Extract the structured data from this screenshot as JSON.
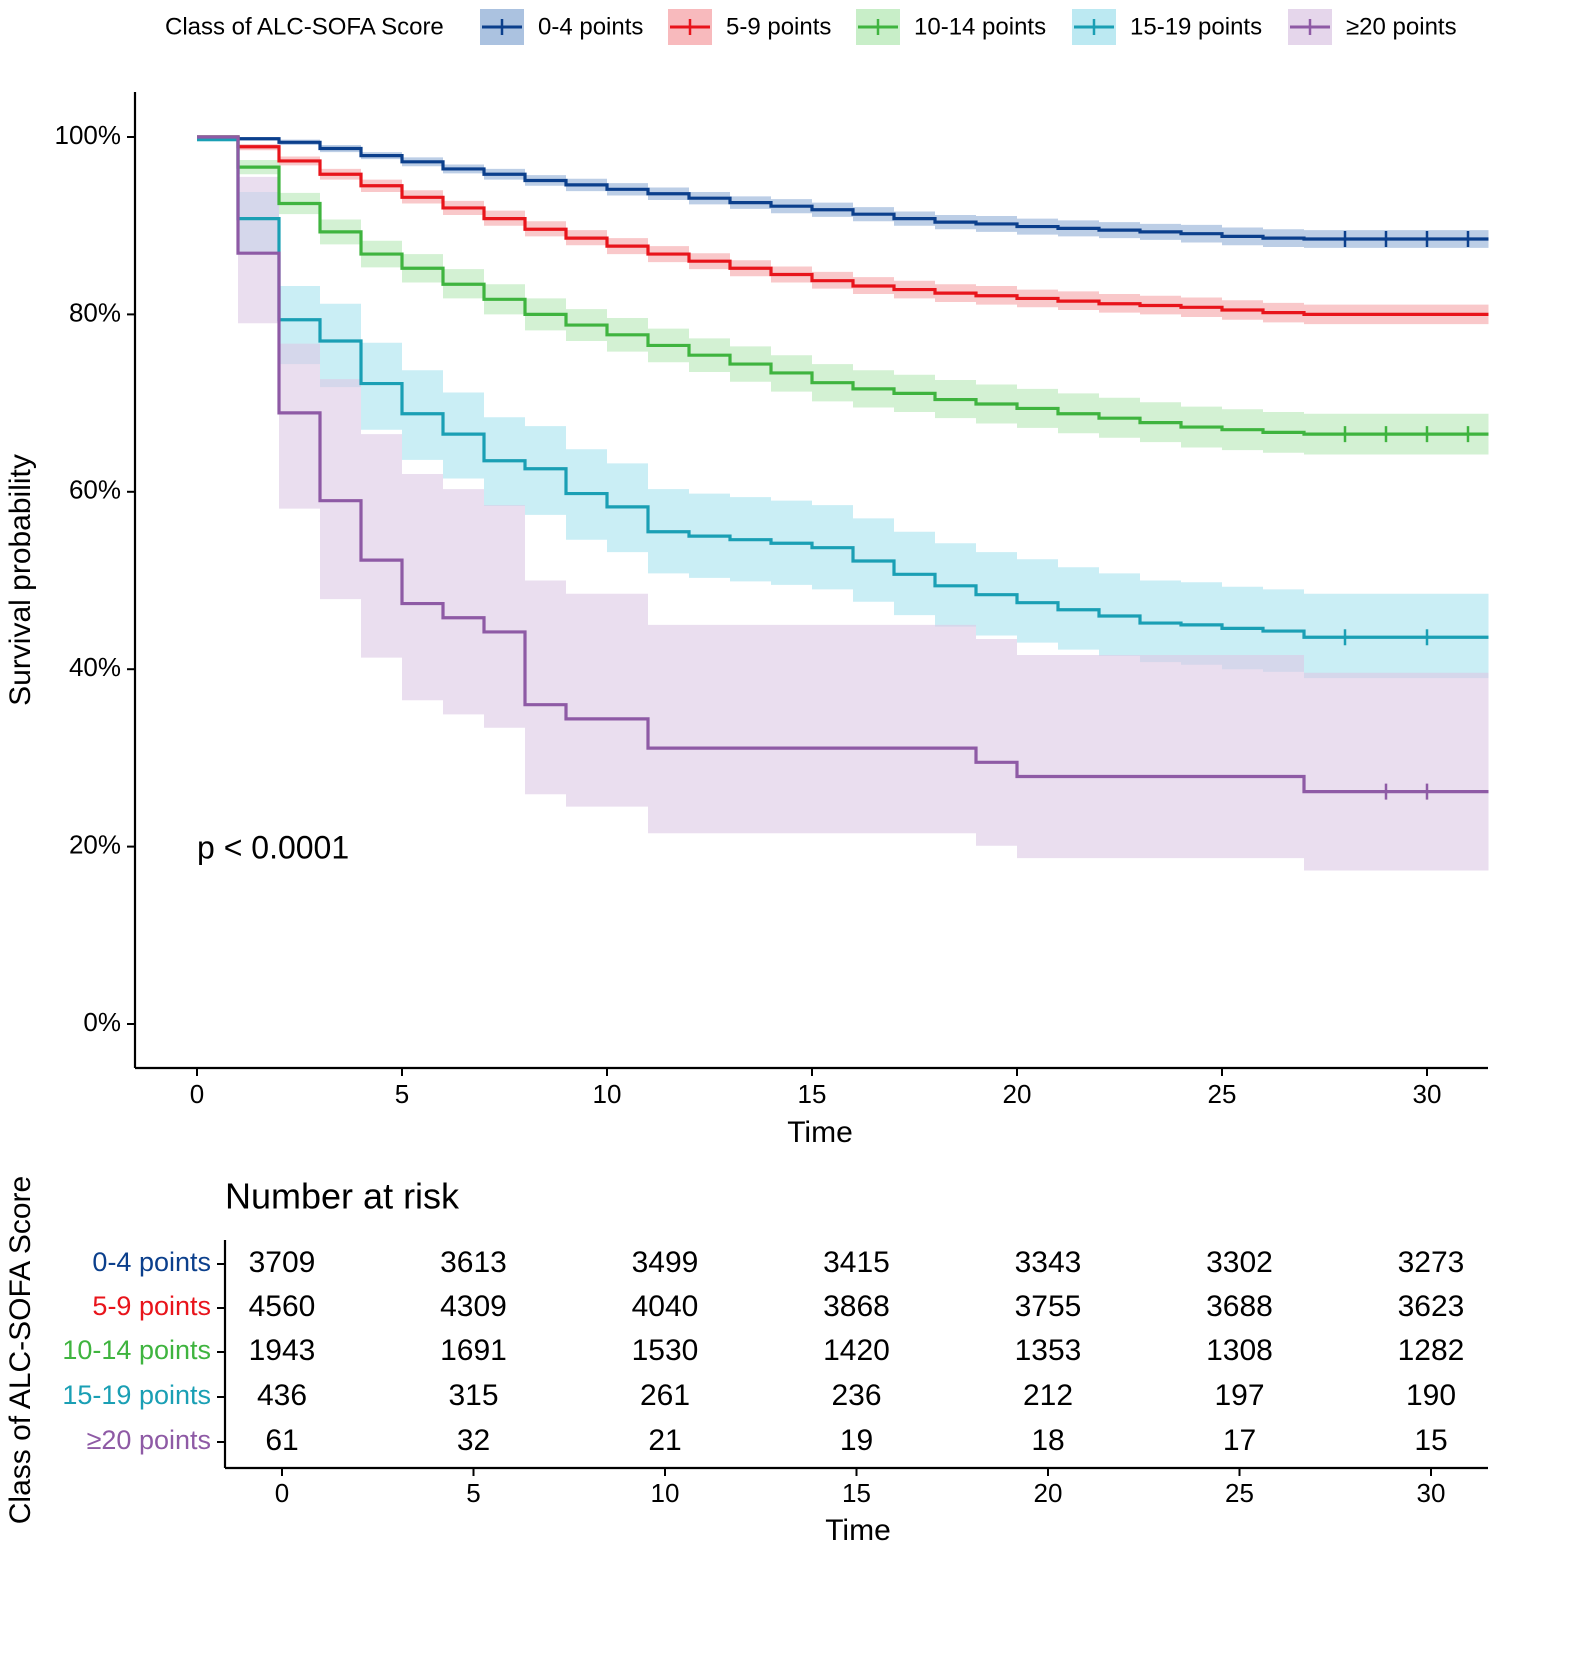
{
  "legend": {
    "title": "Class of ALC-SOFA Score",
    "entries": [
      {
        "label": "0-4 points",
        "color": "#0b3f8c",
        "fill": "#8fadd6"
      },
      {
        "label": "5-9 points",
        "color": "#e8141b",
        "fill": "#f5a3a7"
      },
      {
        "label": "10-14 points",
        "color": "#3fb43f",
        "fill": "#b6e8b6"
      },
      {
        "label": "15-19 points",
        "color": "#1a9fb4",
        "fill": "#a6e2ee"
      },
      {
        "label": "≥20 points",
        "color": "#8e5aa5",
        "fill": "#dcc8e4"
      }
    ]
  },
  "pvalue": "p < 0.0001",
  "chart_data": {
    "type": "line",
    "title": "",
    "xlabel": "Time",
    "ylabel": "Survival probability",
    "xlim": [
      -1.5,
      31.5
    ],
    "ylim": [
      -0.05,
      1.05
    ],
    "xticks": [
      0,
      5,
      10,
      15,
      20,
      25,
      30
    ],
    "yticks": [
      0,
      0.2,
      0.4,
      0.6,
      0.8,
      1.0
    ],
    "ytick_labels": [
      "0%",
      "20%",
      "40%",
      "60%",
      "80%",
      "100%"
    ],
    "series": [
      {
        "name": "0-4 points",
        "x": [
          0,
          1,
          2,
          3,
          4,
          5,
          6,
          7,
          8,
          9,
          10,
          11,
          12,
          13,
          14,
          15,
          16,
          17,
          18,
          19,
          20,
          21,
          22,
          23,
          24,
          25,
          26,
          27,
          28,
          29,
          30,
          31.5
        ],
        "y": [
          1.0,
          0.998,
          0.994,
          0.987,
          0.979,
          0.972,
          0.964,
          0.958,
          0.951,
          0.946,
          0.941,
          0.936,
          0.931,
          0.926,
          0.922,
          0.918,
          0.913,
          0.908,
          0.904,
          0.902,
          0.899,
          0.897,
          0.895,
          0.893,
          0.891,
          0.888,
          0.886,
          0.885,
          0.885,
          0.885,
          0.885,
          0.885
        ],
        "lower": [
          1.0,
          0.996,
          0.991,
          0.983,
          0.975,
          0.967,
          0.959,
          0.952,
          0.945,
          0.939,
          0.934,
          0.929,
          0.924,
          0.919,
          0.914,
          0.91,
          0.905,
          0.9,
          0.896,
          0.893,
          0.89,
          0.888,
          0.886,
          0.884,
          0.881,
          0.878,
          0.876,
          0.875,
          0.875,
          0.875,
          0.875,
          0.875
        ],
        "upper": [
          1.0,
          1.0,
          0.997,
          0.991,
          0.983,
          0.977,
          0.969,
          0.964,
          0.957,
          0.953,
          0.948,
          0.943,
          0.938,
          0.933,
          0.93,
          0.926,
          0.921,
          0.916,
          0.912,
          0.911,
          0.908,
          0.906,
          0.904,
          0.902,
          0.901,
          0.898,
          0.896,
          0.895,
          0.895,
          0.895,
          0.895,
          0.895
        ],
        "censor_x": [
          28,
          29,
          30,
          31
        ]
      },
      {
        "name": "5-9 points",
        "x": [
          0,
          1,
          2,
          3,
          4,
          5,
          6,
          7,
          8,
          9,
          10,
          11,
          12,
          13,
          14,
          15,
          16,
          17,
          18,
          19,
          20,
          21,
          22,
          23,
          24,
          25,
          26,
          27,
          28,
          29,
          30,
          31.5
        ],
        "y": [
          1.0,
          0.989,
          0.973,
          0.958,
          0.945,
          0.932,
          0.92,
          0.908,
          0.896,
          0.886,
          0.877,
          0.868,
          0.86,
          0.852,
          0.845,
          0.838,
          0.832,
          0.828,
          0.824,
          0.821,
          0.818,
          0.815,
          0.812,
          0.81,
          0.808,
          0.805,
          0.802,
          0.8,
          0.8,
          0.8,
          0.8,
          0.8
        ],
        "lower": [
          1.0,
          0.985,
          0.968,
          0.952,
          0.938,
          0.925,
          0.912,
          0.9,
          0.888,
          0.878,
          0.868,
          0.859,
          0.851,
          0.843,
          0.836,
          0.829,
          0.823,
          0.818,
          0.814,
          0.811,
          0.808,
          0.805,
          0.802,
          0.8,
          0.797,
          0.794,
          0.791,
          0.789,
          0.789,
          0.789,
          0.789,
          0.789
        ],
        "upper": [
          1.0,
          0.992,
          0.978,
          0.964,
          0.952,
          0.94,
          0.928,
          0.917,
          0.905,
          0.895,
          0.886,
          0.877,
          0.869,
          0.861,
          0.854,
          0.848,
          0.842,
          0.838,
          0.834,
          0.832,
          0.828,
          0.826,
          0.823,
          0.821,
          0.819,
          0.816,
          0.813,
          0.811,
          0.811,
          0.811,
          0.811,
          0.811
        ]
      },
      {
        "name": "10-14 points",
        "x": [
          0,
          1,
          2,
          3,
          4,
          5,
          6,
          7,
          8,
          9,
          10,
          11,
          12,
          13,
          14,
          15,
          16,
          17,
          18,
          19,
          20,
          21,
          22,
          23,
          24,
          25,
          26,
          27,
          28,
          29,
          30,
          31.5
        ],
        "y": [
          1.0,
          0.966,
          0.925,
          0.893,
          0.868,
          0.852,
          0.834,
          0.817,
          0.8,
          0.788,
          0.777,
          0.765,
          0.754,
          0.744,
          0.734,
          0.723,
          0.716,
          0.711,
          0.704,
          0.699,
          0.694,
          0.688,
          0.683,
          0.678,
          0.673,
          0.67,
          0.667,
          0.665,
          0.665,
          0.665,
          0.665,
          0.665
        ],
        "lower": [
          1.0,
          0.958,
          0.913,
          0.879,
          0.853,
          0.836,
          0.818,
          0.8,
          0.782,
          0.77,
          0.758,
          0.746,
          0.735,
          0.724,
          0.713,
          0.702,
          0.695,
          0.69,
          0.683,
          0.677,
          0.672,
          0.666,
          0.661,
          0.656,
          0.65,
          0.647,
          0.644,
          0.642,
          0.642,
          0.642,
          0.642,
          0.642
        ],
        "upper": [
          1.0,
          0.974,
          0.937,
          0.907,
          0.883,
          0.868,
          0.851,
          0.834,
          0.818,
          0.806,
          0.796,
          0.784,
          0.773,
          0.764,
          0.754,
          0.744,
          0.737,
          0.732,
          0.726,
          0.721,
          0.716,
          0.711,
          0.706,
          0.701,
          0.696,
          0.693,
          0.69,
          0.688,
          0.688,
          0.688,
          0.688,
          0.688
        ],
        "censor_x": [
          28,
          29,
          30,
          31
        ]
      },
      {
        "name": "15-19 points",
        "x": [
          0,
          1,
          2,
          3,
          4,
          5,
          6,
          7,
          8,
          9,
          10,
          11,
          12,
          13,
          14,
          15,
          16,
          17,
          18,
          19,
          20,
          21,
          22,
          23,
          24,
          25,
          26,
          27,
          28,
          29,
          30,
          31.5
        ],
        "y": [
          0.997,
          0.908,
          0.794,
          0.77,
          0.722,
          0.688,
          0.665,
          0.635,
          0.626,
          0.598,
          0.583,
          0.555,
          0.55,
          0.546,
          0.542,
          0.537,
          0.522,
          0.507,
          0.494,
          0.484,
          0.475,
          0.467,
          0.46,
          0.452,
          0.45,
          0.446,
          0.443,
          0.436,
          0.436,
          0.436,
          0.436,
          0.436
        ],
        "lower": [
          0.995,
          0.87,
          0.744,
          0.718,
          0.67,
          0.636,
          0.615,
          0.584,
          0.574,
          0.546,
          0.532,
          0.508,
          0.503,
          0.499,
          0.495,
          0.49,
          0.476,
          0.461,
          0.448,
          0.438,
          0.43,
          0.422,
          0.415,
          0.408,
          0.405,
          0.4,
          0.397,
          0.39,
          0.39,
          0.39,
          0.39,
          0.39
        ],
        "upper": [
          1.0,
          0.938,
          0.832,
          0.812,
          0.768,
          0.737,
          0.712,
          0.684,
          0.674,
          0.648,
          0.632,
          0.603,
          0.598,
          0.594,
          0.59,
          0.585,
          0.57,
          0.555,
          0.542,
          0.532,
          0.524,
          0.515,
          0.508,
          0.5,
          0.498,
          0.493,
          0.49,
          0.485,
          0.485,
          0.485,
          0.485,
          0.485
        ],
        "censor_x": [
          28,
          30
        ]
      },
      {
        "name": "≥20 points",
        "x": [
          0,
          1,
          2,
          3,
          4,
          5,
          6,
          7,
          8,
          9,
          11,
          19,
          20,
          27,
          31.5
        ],
        "y": [
          1.0,
          0.869,
          0.689,
          0.59,
          0.523,
          0.474,
          0.458,
          0.442,
          0.36,
          0.344,
          0.311,
          0.295,
          0.279,
          0.262,
          0.262
        ],
        "lower": [
          1.0,
          0.79,
          0.581,
          0.479,
          0.413,
          0.365,
          0.349,
          0.334,
          0.259,
          0.245,
          0.215,
          0.201,
          0.187,
          0.173,
          0.173
        ],
        "upper": [
          1.0,
          0.955,
          0.767,
          0.727,
          0.665,
          0.62,
          0.603,
          0.585,
          0.5,
          0.485,
          0.45,
          0.434,
          0.416,
          0.396,
          0.396
        ],
        "censor_x": [
          29,
          30
        ]
      }
    ]
  },
  "risk_table": {
    "title": "Number at risk",
    "ylabel": "Class of ALC-SOFA Score",
    "xlabel": "Time",
    "xticks": [
      0,
      5,
      10,
      15,
      20,
      25,
      30
    ],
    "rows": [
      {
        "label": "0-4 points",
        "color": "#0b3f8c",
        "values": [
          "3709",
          "3613",
          "3499",
          "3415",
          "3343",
          "3302",
          "3273"
        ]
      },
      {
        "label": "5-9 points",
        "color": "#e8141b",
        "values": [
          "4560",
          "4309",
          "4040",
          "3868",
          "3755",
          "3688",
          "3623"
        ]
      },
      {
        "label": "10-14 points",
        "color": "#3fb43f",
        "values": [
          "1943",
          "1691",
          "1530",
          "1420",
          "1353",
          "1308",
          "1282"
        ]
      },
      {
        "label": "15-19 points",
        "color": "#1a9fb4",
        "values": [
          "436",
          "315",
          "261",
          "236",
          "212",
          "197",
          "190"
        ]
      },
      {
        "label": "≥20 points",
        "color": "#8e5aa5",
        "values": [
          "61",
          "32",
          "21",
          "19",
          "18",
          "17",
          "15"
        ]
      }
    ]
  }
}
